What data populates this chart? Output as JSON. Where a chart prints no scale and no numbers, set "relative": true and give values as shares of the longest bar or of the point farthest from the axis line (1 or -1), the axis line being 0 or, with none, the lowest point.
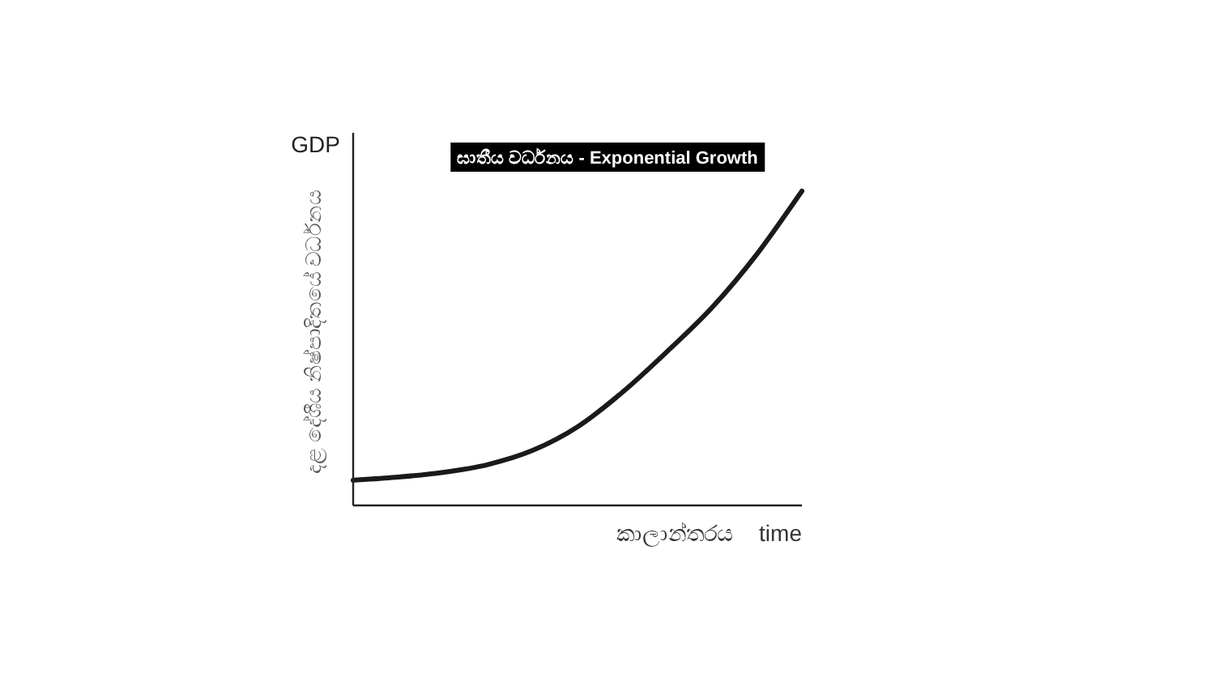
{
  "chart_data": {
    "type": "line",
    "relative": true,
    "title": "ඝාතීය වර්ධනය  - Exponential Growth",
    "xlabel": "කාලාන්තරය time",
    "ylabel": "දළ දේශීය නිෂ්පාදිතයේ වර්ධනය",
    "annotations": [
      "GDP"
    ],
    "categories": [
      null,
      null,
      null,
      null,
      null,
      null,
      null,
      null,
      null,
      null,
      null
    ],
    "series": [
      {
        "color": "#1a1a1a",
        "values": [
          0.08,
          0.09,
          0.105,
          0.13,
          0.175,
          0.25,
          0.36,
          0.49,
          0.63,
          0.8,
          1
        ]
      }
    ]
  }
}
